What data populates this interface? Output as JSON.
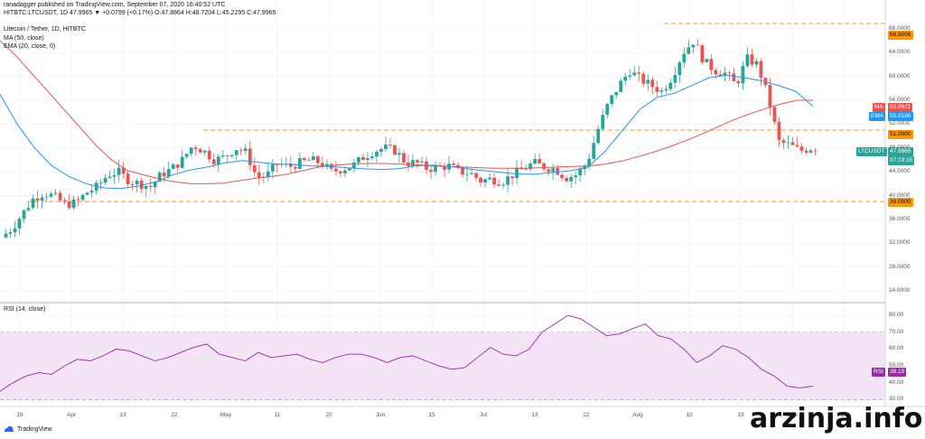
{
  "header": {
    "publisher": "ranadagger published on TradingView.com, September 07, 2020 16:40:52 UTC",
    "ohlc_line": "HITBTC:LTCUSDT, 1D 47.9965 ▼ +0.0799 (+0.17%) O:47.8864 H:48.7204 L:45.2295 C:47.9965",
    "title": "Litecoin / Tether, 1D, HITBTC",
    "ma_legend": "MA (50, close)",
    "ema_legend": "EMA (20, close, 0)",
    "rsi_legend": "RSI (14, close)"
  },
  "badges": {
    "top_level": "68.9008",
    "ma_label": "MA",
    "ma_value": "55.9611",
    "ema_label": "EMA",
    "ema_value": "55.0186",
    "resistance": "51.0000",
    "symbol": "LTCUSDT",
    "price": "47.9965",
    "countdown": "07:19:15",
    "support": "39.0000",
    "rsi_label": "RSI",
    "rsi_value": "38.19"
  },
  "footer": {
    "logo_text": "TradingView",
    "watermark": "arzinja.info"
  },
  "colors": {
    "up": "#26a69a",
    "down": "#ef5350",
    "ma": "#ef5350",
    "ema": "#2196f3",
    "level": "#ff9800",
    "rsi_line": "#9c27b0",
    "rsi_band": "#f3e5f5"
  },
  "chart_data": {
    "type": "candlestick",
    "price_axis": {
      "ticks": [
        "68.0000",
        "64.0000",
        "60.0000",
        "56.0000",
        "52.0000",
        "48.0000",
        "44.0000",
        "40.0000",
        "36.0000",
        "32.0000",
        "28.0000",
        "24.0000"
      ],
      "range": [
        22.5,
        69.5
      ]
    },
    "rsi_axis": {
      "ticks": [
        "80.00",
        "70.00",
        "60.00",
        "50.00",
        "40.00",
        "30.00"
      ],
      "range": [
        27,
        86
      ],
      "band": [
        30,
        70
      ]
    },
    "time_axis": [
      "16",
      "Apr",
      "13",
      "22",
      "May",
      "11",
      "20",
      "Jun",
      "15",
      "Jul",
      "13",
      "22",
      "Aug",
      "10",
      "19",
      "Sep",
      "14"
    ],
    "levels": [
      68.9008,
      51.0,
      39.0
    ],
    "price_path": [
      33,
      34.5,
      37,
      39.5,
      40.5,
      39.8,
      38.5,
      38.8,
      40.5,
      41.5,
      43.5,
      44,
      42.5,
      42,
      41.5,
      43.5,
      44.5,
      46,
      48.5,
      47.5,
      46,
      46.5,
      48,
      47.2,
      43,
      43.5,
      45.5,
      44.8,
      45.5,
      46,
      45.5,
      44,
      44.5,
      45,
      46.5,
      47.5,
      48,
      47.5,
      45.5,
      45.5,
      44.5,
      44.8,
      45,
      44,
      43.8,
      42.5,
      42.8,
      42.3,
      43.5,
      44.5,
      45.5,
      44.8,
      44.5,
      43,
      43.5,
      45.5,
      51,
      55.5,
      58.5,
      61,
      59.5,
      58.5,
      57.5,
      60,
      64,
      66,
      62.5,
      61,
      60.5,
      58.5,
      63,
      62,
      56.5,
      49,
      48.5,
      47.5,
      48
    ],
    "ma50_path": [
      66,
      63.5,
      60.5,
      57.5,
      54.5,
      51.5,
      48.5,
      46,
      44.2,
      43.5,
      42.8,
      42.3,
      42,
      42,
      42.1,
      42.5,
      42.9,
      43.2,
      43.6,
      44.2,
      44.8,
      45.1,
      45.3,
      45.4,
      45.4,
      45.3,
      45.2,
      45,
      44.9,
      44.8,
      44.7,
      44.6,
      44.6,
      44.6,
      44.7,
      44.8,
      44.9,
      45,
      45.3,
      45.8,
      46.5,
      47.3,
      48.2,
      49.2,
      50.3,
      51.5,
      52.7,
      53.7,
      54.6,
      55.4,
      56,
      56
    ],
    "ema20_path": [
      57,
      52,
      48,
      45,
      43.2,
      42,
      41.3,
      41.2,
      41.6,
      42.3,
      43.5,
      44.3,
      44.8,
      45.5,
      45.9,
      45.6,
      45.3,
      45.2,
      45,
      44.9,
      44.7,
      44.5,
      44.4,
      44.5,
      45,
      45.1,
      44.9,
      44.5,
      44.2,
      43.9,
      43.6,
      43.6,
      43.9,
      44.2,
      44.8,
      47.5,
      51,
      54.5,
      56.5,
      57.2,
      58.5,
      59.8,
      60.2,
      59.8,
      59.3,
      58.5,
      57.5,
      55
    ],
    "rsi_path": [
      35,
      40,
      44,
      46,
      45,
      50,
      54,
      53,
      56,
      60,
      59,
      56,
      53,
      55,
      58,
      61,
      63,
      57,
      55,
      53,
      58,
      55,
      56,
      57,
      54,
      52,
      55,
      57,
      57,
      55,
      52,
      55,
      56,
      53,
      50,
      48,
      49,
      55,
      61,
      57,
      56,
      60,
      70,
      75,
      80,
      78,
      73,
      68,
      69,
      72,
      75,
      68,
      66,
      60,
      52,
      56,
      62,
      60,
      55,
      48,
      44,
      38,
      37,
      38
    ],
    "candles_approx_count": 180
  }
}
